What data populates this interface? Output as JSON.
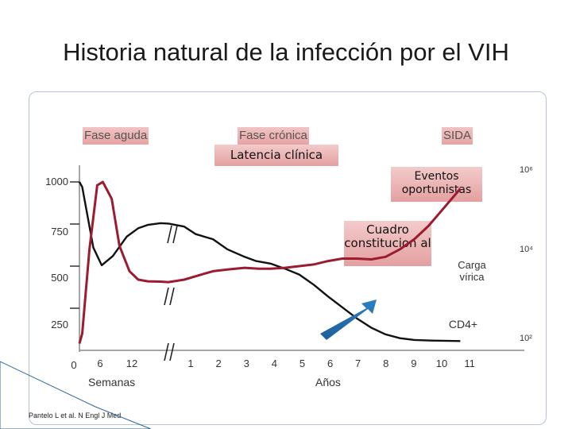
{
  "title": "Historia natural de la infección por el VIH",
  "phases": {
    "acute": "Fase aguda",
    "chronic": "Fase crónica",
    "aids": "SIDA",
    "latency": "Latencia clínica"
  },
  "annotations": {
    "events": "Eventos oportunistas",
    "constitutional": "Cuadro constitucion al",
    "viral_load": "Carga vírica",
    "cd4": "CD4+"
  },
  "citation": "Pantelo L et al. N Engl J Med",
  "colors": {
    "viral_curve": "#9b1b30",
    "cd4_curve": "#111111",
    "arrow": "#2e7fbf",
    "box_fill": "#e8a9a9"
  },
  "chart_data": {
    "type": "line",
    "title": "Historia natural de la infección por el VIH",
    "y_left": {
      "ticks": [
        "1000",
        "750",
        "500",
        "250"
      ],
      "values": [
        1000,
        750,
        500,
        250
      ],
      "ylim": [
        0,
        1050
      ]
    },
    "y_right": {
      "ticks": [
        "10⁶",
        "10⁴",
        "10²"
      ]
    },
    "x_weeks": {
      "ticks": [
        "0",
        "6",
        "12"
      ],
      "label": "Semanas"
    },
    "x_years": {
      "ticks": [
        "1",
        "2",
        "3",
        "4",
        "5",
        "6",
        "7",
        "8",
        "9",
        "10",
        "11"
      ],
      "label": "Años"
    },
    "series": [
      {
        "name": "CD4+",
        "color": "#111111",
        "points": [
          [
            0,
            1000
          ],
          [
            0.05,
            970
          ],
          [
            0.25,
            610
          ],
          [
            0.4,
            505
          ],
          [
            0.6,
            560
          ],
          [
            0.85,
            675
          ],
          [
            1.1,
            725
          ],
          [
            1.4,
            745
          ],
          [
            1.8,
            755
          ],
          [
            2.05,
            753
          ],
          [
            2.6,
            735
          ],
          [
            3.0,
            690
          ],
          [
            3.6,
            660
          ],
          [
            4.1,
            600
          ],
          [
            4.7,
            555
          ],
          [
            5.1,
            530
          ],
          [
            5.6,
            515
          ],
          [
            6.1,
            485
          ],
          [
            6.6,
            450
          ],
          [
            7.1,
            390
          ],
          [
            7.6,
            320
          ],
          [
            8.1,
            255
          ],
          [
            8.6,
            190
          ],
          [
            9.1,
            135
          ],
          [
            9.6,
            95
          ],
          [
            10.1,
            72
          ],
          [
            10.6,
            62
          ],
          [
            11.2,
            58
          ],
          [
            11.8,
            56
          ],
          [
            12.2,
            55
          ]
        ]
      },
      {
        "name": "Carga vírica",
        "color": "#9b1b30",
        "points": [
          [
            0,
            40
          ],
          [
            0.05,
            100
          ],
          [
            0.18,
            600
          ],
          [
            0.32,
            980
          ],
          [
            0.42,
            1000
          ],
          [
            0.58,
            900
          ],
          [
            0.72,
            620
          ],
          [
            0.9,
            470
          ],
          [
            1.1,
            420
          ],
          [
            1.4,
            410
          ],
          [
            1.8,
            408
          ],
          [
            2.05,
            405
          ],
          [
            2.6,
            420
          ],
          [
            3.0,
            440
          ],
          [
            3.6,
            470
          ],
          [
            4.1,
            480
          ],
          [
            4.7,
            490
          ],
          [
            5.2,
            485
          ],
          [
            5.6,
            485
          ],
          [
            6.1,
            490
          ],
          [
            6.6,
            500
          ],
          [
            7.1,
            510
          ],
          [
            7.6,
            530
          ],
          [
            8.1,
            545
          ],
          [
            8.6,
            545
          ],
          [
            9.1,
            540
          ],
          [
            9.6,
            555
          ],
          [
            10.1,
            600
          ],
          [
            10.6,
            660
          ],
          [
            11.1,
            740
          ],
          [
            11.5,
            820
          ],
          [
            11.9,
            900
          ],
          [
            12.2,
            960
          ]
        ]
      }
    ]
  }
}
